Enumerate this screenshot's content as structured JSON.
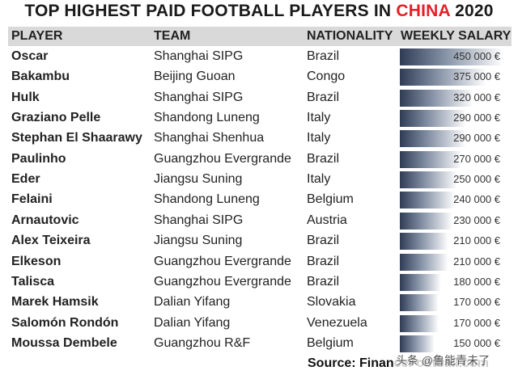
{
  "title": {
    "prefix": "TOP HIGHEST PAID FOOTBALL PLAYERS IN ",
    "highlight": "CHINA",
    "suffix": " 2020"
  },
  "columns": {
    "player": "PLAYER",
    "team": "TEAM",
    "nationality": "NATIONALITY",
    "salary": "WEEKLY SALARY"
  },
  "source": "Source: FinanceFootball.com",
  "watermark": "头条 @鲁能青未了",
  "colors": {
    "highlight": "#e41f26",
    "bar_dark": "#2f3c55",
    "header_bg": "#d9d9d9"
  },
  "chart_data": {
    "type": "table",
    "value_max": 450000,
    "rows": [
      {
        "player": "Oscar",
        "team": "Shanghai SIPG",
        "nationality": "Brazil",
        "value": 450000,
        "salary": "450 000 €"
      },
      {
        "player": "Bakambu",
        "team": "Beijing Guoan",
        "nationality": "Congo",
        "value": 375000,
        "salary": "375 000 €"
      },
      {
        "player": "Hulk",
        "team": "Shanghai SIPG",
        "nationality": "Brazil",
        "value": 320000,
        "salary": "320 000 €"
      },
      {
        "player": "Graziano Pelle",
        "team": "Shandong Luneng",
        "nationality": "Italy",
        "value": 290000,
        "salary": "290 000 €"
      },
      {
        "player": "Stephan El Shaarawy",
        "team": "Shanghai Shenhua",
        "nationality": "Italy",
        "value": 290000,
        "salary": "290 000 €"
      },
      {
        "player": "Paulinho",
        "team": "Guangzhou Evergrande",
        "nationality": "Brazil",
        "value": 270000,
        "salary": "270 000 €"
      },
      {
        "player": "Eder",
        "team": "Jiangsu Suning",
        "nationality": "Italy",
        "value": 250000,
        "salary": "250 000 €"
      },
      {
        "player": "Felaini",
        "team": "Shandong Luneng",
        "nationality": "Belgium",
        "value": 240000,
        "salary": "240 000 €"
      },
      {
        "player": "Arnautovic",
        "team": "Shanghai SIPG",
        "nationality": "Austria",
        "value": 230000,
        "salary": "230 000 €"
      },
      {
        "player": "Alex Teixeira",
        "team": "Jiangsu Suning",
        "nationality": "Brazil",
        "value": 210000,
        "salary": "210 000 €"
      },
      {
        "player": "Elkeson",
        "team": "Guangzhou Evergrande",
        "nationality": "Brazil",
        "value": 210000,
        "salary": "210 000 €"
      },
      {
        "player": "Talisca",
        "team": "Guangzhou Evergrande",
        "nationality": "Brazil",
        "value": 180000,
        "salary": "180 000 €"
      },
      {
        "player": "Marek Hamsik",
        "team": "Dalian Yifang",
        "nationality": "Slovakia",
        "value": 170000,
        "salary": "170 000 €"
      },
      {
        "player": "Salomón Rondón",
        "team": "Dalian Yifang",
        "nationality": "Venezuela",
        "value": 170000,
        "salary": "170 000 €"
      },
      {
        "player": "Moussa Dembele",
        "team": "Guangzhou R&F",
        "nationality": "Belgium",
        "value": 150000,
        "salary": "150 000 €"
      }
    ]
  }
}
